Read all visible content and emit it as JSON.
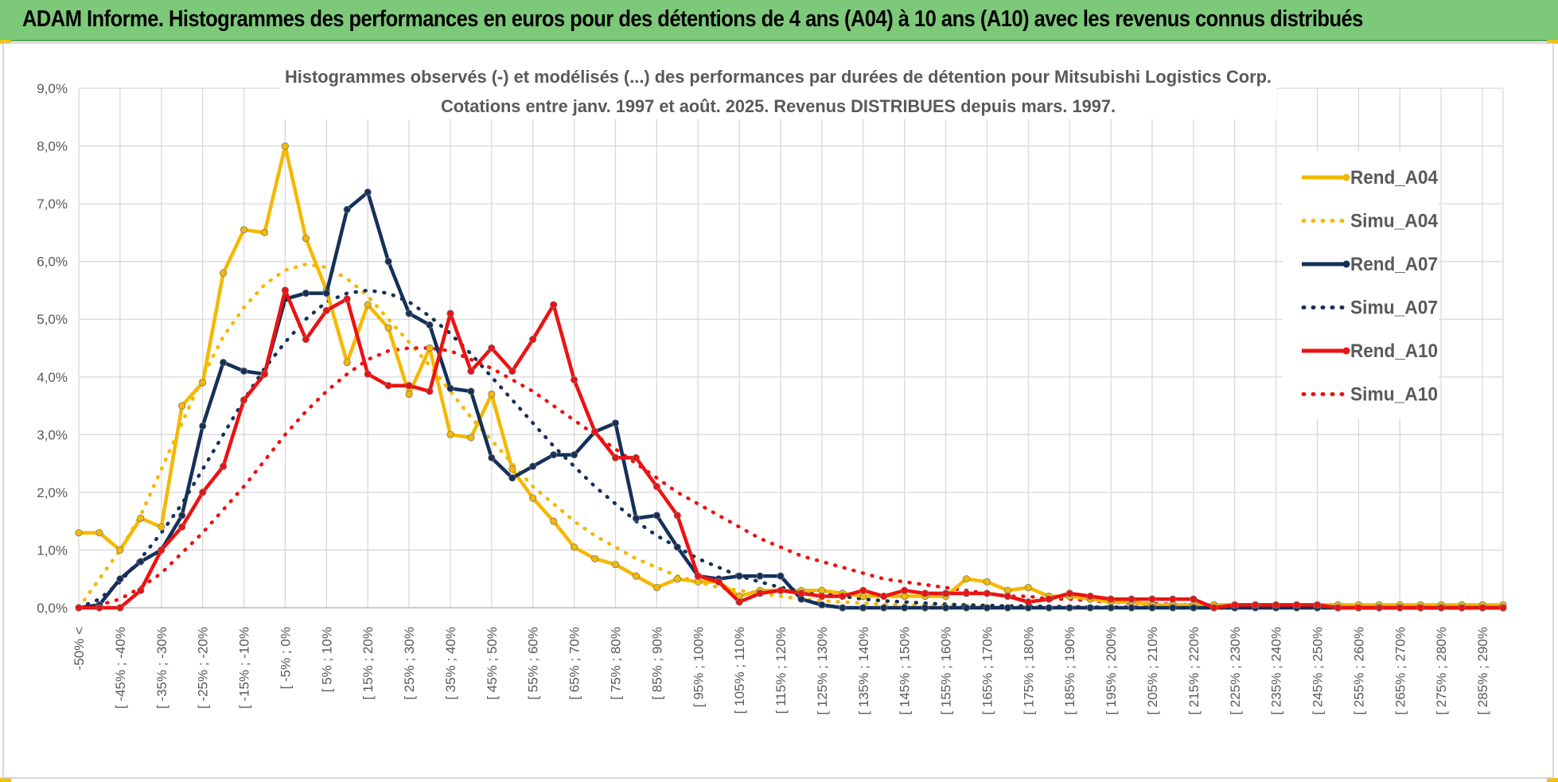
{
  "banner": {
    "title": "ADAM Informe. Histogrammes des performances en euros pour des détentions de 4 ans (A04) à 10 ans (A10) avec les revenus connus distribués"
  },
  "colors": {
    "A04": "#f5b800",
    "A07": "#14305a",
    "A10": "#ee1111",
    "banner": "#7dc97a",
    "grid": "#d9d9d9"
  },
  "chart_data": {
    "type": "line",
    "title": "Histogrammes observés (-) et modélisés (...) des performances par durées de détention pour Mitsubishi Logistics Corp.",
    "subtitle": "Cotations entre janv. 1997 et août. 2025. Revenus DISTRIBUES depuis mars. 1997.",
    "xlabel": "",
    "ylabel": "",
    "ylim": [
      0,
      9
    ],
    "yticks": [
      "0,0%",
      "1,0%",
      "2,0%",
      "3,0%",
      "4,0%",
      "5,0%",
      "6,0%",
      "7,0%",
      "8,0%",
      "9,0%"
    ],
    "grid": true,
    "legend_position": "right",
    "x_tick_labels": [
      "-50% <",
      "[ -45% ; -40%",
      "[ -35% ; -30%",
      "[ -25% ; -20%",
      "[ -15% ; -10%",
      "[ -5% ; 0%",
      "[ 5% ; 10%",
      "[ 15% ; 20%",
      "[ 25% ; 30%",
      "[ 35% ; 40%",
      "[ 45% ; 50%",
      "[ 55% ; 60%",
      "[ 65% ; 70%",
      "[ 75% ; 80%",
      "[ 85% ; 90%",
      "[ 95% ; 100%",
      "[ 105% ; 110%",
      "[ 115% ; 120%",
      "[ 125% ; 130%",
      "[ 135% ; 140%",
      "[ 145% ; 150%",
      "[ 155% ; 160%",
      "[ 165% ; 170%",
      "[ 175% ; 180%",
      "[ 185% ; 190%",
      "[ 195% ; 200%",
      "[ 205% ; 210%",
      "[ 215% ; 220%",
      "[ 225% ; 230%",
      "[ 235% ; 240%",
      "[ 245% ; 250%",
      "[ 255% ; 260%",
      "[ 265% ; 270%",
      "[ 275% ; 280%",
      "[ 285% ; 290%"
    ],
    "series": [
      {
        "name": "Rend_A04",
        "key": "A04",
        "style": "solid",
        "values": [
          1.3,
          1.3,
          1.0,
          1.55,
          1.4,
          3.5,
          3.9,
          5.8,
          6.55,
          6.5,
          8.0,
          6.4,
          5.5,
          4.25,
          5.25,
          4.85,
          3.7,
          4.5,
          3.0,
          2.95,
          3.7,
          2.4,
          1.9,
          1.5,
          1.05,
          0.85,
          0.75,
          0.55,
          0.35,
          0.5,
          0.45,
          0.45,
          0.2,
          0.3,
          0.3,
          0.3,
          0.3,
          0.25,
          0.2,
          0.2,
          0.2,
          0.2,
          0.2,
          0.5,
          0.45,
          0.3,
          0.35,
          0.2,
          0.2,
          0.15,
          0.1,
          0.1,
          0.05,
          0.05,
          0.05,
          0.05,
          0.05,
          0.05,
          0.05,
          0.05,
          0.05,
          0.05,
          0.05,
          0.05,
          0.05,
          0.05,
          0.05,
          0.05,
          0.05,
          0.05
        ]
      },
      {
        "name": "Simu_A04",
        "key": "A04",
        "style": "dotted",
        "values": [
          0.0,
          0.5,
          1.0,
          1.6,
          2.4,
          3.2,
          4.0,
          4.7,
          5.2,
          5.6,
          5.85,
          5.95,
          5.9,
          5.7,
          5.4,
          5.0,
          4.6,
          4.2,
          3.75,
          3.3,
          2.9,
          2.5,
          2.1,
          1.8,
          1.5,
          1.25,
          1.05,
          0.85,
          0.7,
          0.55,
          0.45,
          0.35,
          0.3,
          0.25,
          0.2,
          0.15,
          0.12,
          0.1,
          0.08,
          0.06,
          0.05,
          0.04,
          0.03,
          0.03,
          0.02,
          0.02,
          0.02,
          0.01,
          0.01,
          0.01,
          0.01,
          0.0,
          0.0,
          0.0,
          0.0,
          0.0,
          0.0,
          0.0,
          0.0,
          0.0,
          0.0,
          0.0,
          0.0,
          0.0,
          0.0,
          0.0,
          0.0,
          0.0,
          0.0,
          0.0
        ]
      },
      {
        "name": "Rend_A07",
        "key": "A07",
        "style": "solid",
        "values": [
          0.0,
          0.05,
          0.5,
          0.8,
          1.0,
          1.6,
          3.15,
          4.25,
          4.1,
          4.05,
          5.35,
          5.45,
          5.45,
          6.9,
          7.2,
          6.0,
          5.1,
          4.9,
          3.8,
          3.75,
          2.6,
          2.25,
          2.45,
          2.65,
          2.65,
          3.05,
          3.2,
          1.55,
          1.6,
          1.05,
          0.55,
          0.5,
          0.55,
          0.55,
          0.55,
          0.15,
          0.05,
          0.0,
          0.0,
          0.0,
          0.0,
          0.0,
          0.0,
          0.0,
          0.0,
          0.0,
          0.0,
          0.0,
          0.0,
          0.0,
          0.0,
          0.0,
          0.0,
          0.0,
          0.0,
          0.0,
          0.0,
          0.0,
          0.0,
          0.0,
          0.0,
          0.0,
          0.0,
          0.0,
          0.0,
          0.0,
          0.0,
          0.0,
          0.0,
          0.0
        ]
      },
      {
        "name": "Simu_A07",
        "key": "A07",
        "style": "dotted",
        "values": [
          0.0,
          0.15,
          0.45,
          0.85,
          1.3,
          1.8,
          2.4,
          3.0,
          3.6,
          4.15,
          4.6,
          5.0,
          5.3,
          5.45,
          5.5,
          5.45,
          5.3,
          5.05,
          4.75,
          4.4,
          4.0,
          3.6,
          3.2,
          2.8,
          2.45,
          2.1,
          1.8,
          1.5,
          1.25,
          1.05,
          0.85,
          0.7,
          0.55,
          0.45,
          0.35,
          0.3,
          0.25,
          0.2,
          0.15,
          0.12,
          0.1,
          0.08,
          0.06,
          0.05,
          0.04,
          0.03,
          0.03,
          0.02,
          0.02,
          0.01,
          0.01,
          0.01,
          0.01,
          0.0,
          0.0,
          0.0,
          0.0,
          0.0,
          0.0,
          0.0,
          0.0,
          0.0,
          0.0,
          0.0,
          0.0,
          0.0,
          0.0,
          0.0,
          0.0,
          0.0
        ]
      },
      {
        "name": "Rend_A10",
        "key": "A10",
        "style": "solid",
        "values": [
          0.0,
          0.0,
          0.0,
          0.3,
          1.0,
          1.4,
          2.0,
          2.45,
          3.6,
          4.05,
          5.5,
          4.65,
          5.15,
          5.35,
          4.05,
          3.85,
          3.85,
          3.75,
          5.1,
          4.1,
          4.5,
          4.1,
          4.65,
          5.25,
          3.95,
          3.05,
          2.6,
          2.6,
          2.1,
          1.6,
          0.55,
          0.45,
          0.1,
          0.25,
          0.3,
          0.25,
          0.2,
          0.2,
          0.3,
          0.2,
          0.3,
          0.25,
          0.25,
          0.25,
          0.25,
          0.2,
          0.1,
          0.15,
          0.25,
          0.2,
          0.15,
          0.15,
          0.15,
          0.15,
          0.15,
          0.0,
          0.05,
          0.05,
          0.05,
          0.05,
          0.05,
          0.0,
          0.0,
          0.0,
          0.0,
          0.0,
          0.0,
          0.0,
          0.0,
          0.0
        ]
      },
      {
        "name": "Simu_A10",
        "key": "A10",
        "style": "dotted",
        "values": [
          0.0,
          0.05,
          0.15,
          0.35,
          0.6,
          0.95,
          1.3,
          1.7,
          2.1,
          2.55,
          3.0,
          3.4,
          3.75,
          4.05,
          4.3,
          4.45,
          4.5,
          4.5,
          4.45,
          4.3,
          4.15,
          3.95,
          3.75,
          3.5,
          3.25,
          3.0,
          2.75,
          2.5,
          2.25,
          2.0,
          1.8,
          1.6,
          1.4,
          1.2,
          1.05,
          0.9,
          0.8,
          0.7,
          0.6,
          0.5,
          0.45,
          0.4,
          0.35,
          0.3,
          0.25,
          0.2,
          0.2,
          0.15,
          0.15,
          0.12,
          0.1,
          0.08,
          0.07,
          0.06,
          0.05,
          0.04,
          0.03,
          0.03,
          0.02,
          0.02,
          0.02,
          0.01,
          0.01,
          0.01,
          0.01,
          0.0,
          0.0,
          0.0,
          0.0,
          0.0
        ]
      }
    ]
  }
}
